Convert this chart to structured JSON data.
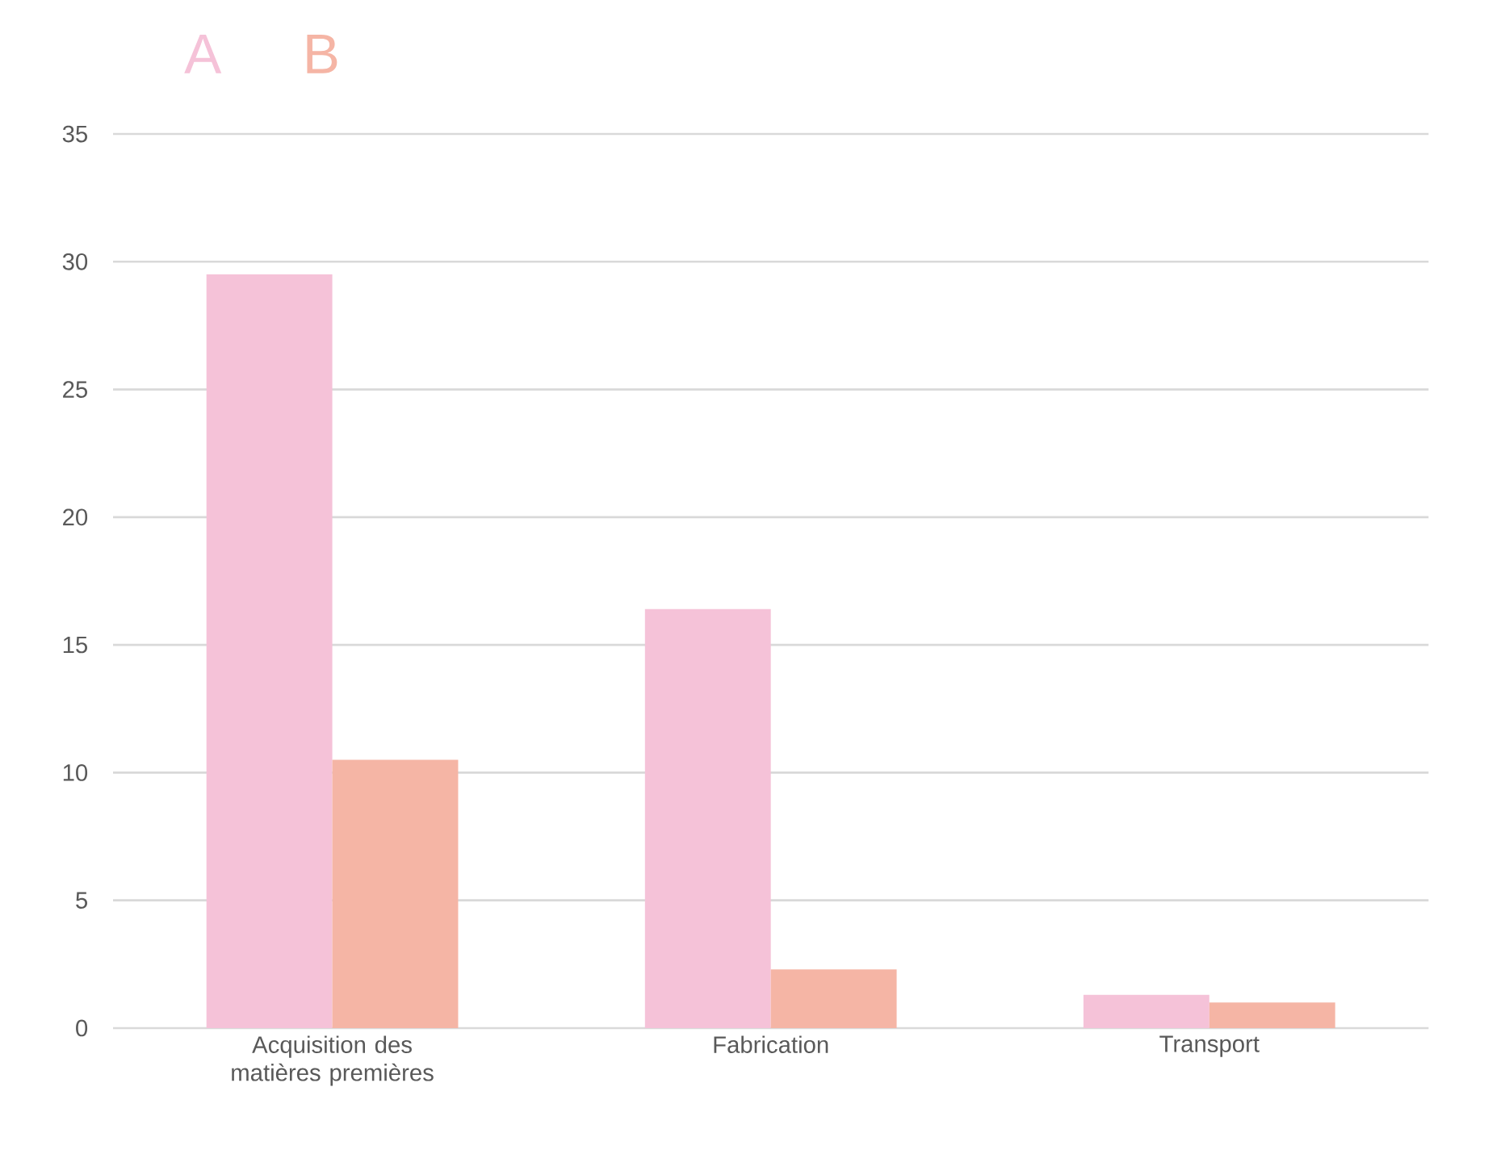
{
  "chart_data": {
    "type": "bar",
    "categories": [
      "Acquisition des matières premières",
      "Fabrication",
      "Transport"
    ],
    "series": [
      {
        "name": "A",
        "color": "#f5c2d8",
        "values": [
          29.5,
          16.4,
          1.3
        ]
      },
      {
        "name": "B",
        "color": "#f5b5a5",
        "values": [
          10.5,
          2.3,
          1.0
        ]
      }
    ],
    "ylim": [
      0,
      35
    ],
    "yticks": [
      0,
      5,
      10,
      15,
      20,
      25,
      30,
      35
    ],
    "grid": "y",
    "legend": "top left"
  }
}
